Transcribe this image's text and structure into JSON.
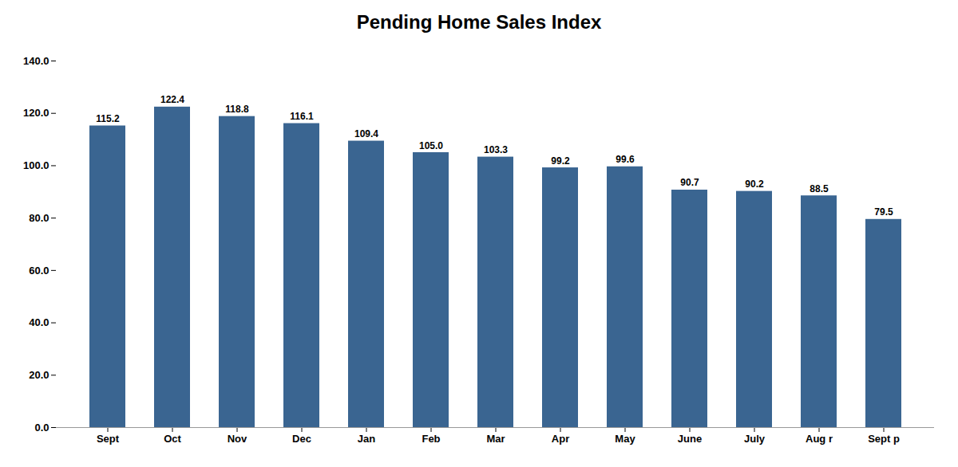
{
  "chart_data": {
    "type": "bar",
    "title": "Pending Home Sales Index",
    "categories": [
      "Sept",
      "Oct",
      "Nov",
      "Dec",
      "Jan",
      "Feb",
      "Mar",
      "Apr",
      "May",
      "June",
      "July",
      "Aug r",
      "Sept p"
    ],
    "values": [
      115.2,
      122.4,
      118.8,
      116.1,
      109.4,
      105.0,
      103.3,
      99.2,
      99.6,
      90.7,
      90.2,
      88.5,
      79.5
    ],
    "value_labels": [
      "115.2",
      "122.4",
      "118.8",
      "116.1",
      "109.4",
      "105.0",
      "103.3",
      "99.2",
      "99.6",
      "90.7",
      "90.2",
      "88.5",
      "79.5"
    ],
    "color": "#3A6591",
    "ylim": [
      0,
      140
    ],
    "yticks": [
      {
        "value": 0,
        "label": "0.0"
      },
      {
        "value": 20,
        "label": "20.0"
      },
      {
        "value": 40,
        "label": "40.0"
      },
      {
        "value": 60,
        "label": "60.0"
      },
      {
        "value": 80,
        "label": "80.0"
      },
      {
        "value": 100,
        "label": "100.0"
      },
      {
        "value": 120,
        "label": "120.0"
      },
      {
        "value": 140,
        "label": "140.0"
      }
    ],
    "grid": false,
    "data_labels": true
  }
}
